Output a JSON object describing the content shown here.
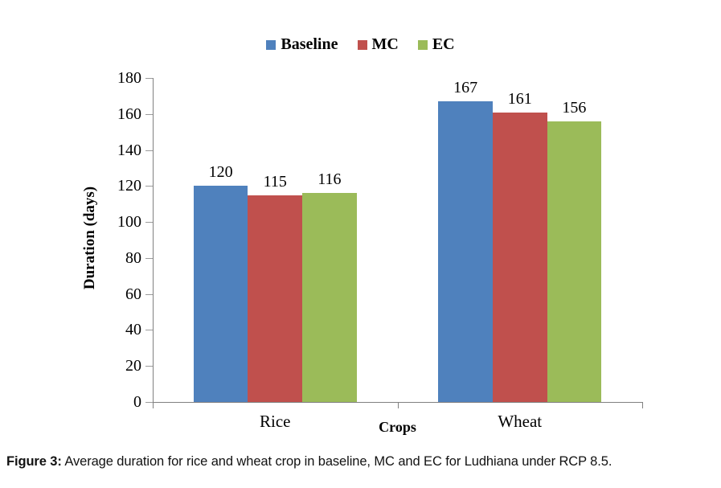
{
  "caption": {
    "label": "Figure 3:",
    "text": " Average duration for rice and wheat crop in baseline, MC and EC for Ludhiana under RCP 8.5."
  },
  "chart_data": {
    "type": "bar",
    "title": "",
    "categories": [
      "Rice",
      "Wheat"
    ],
    "series": [
      {
        "name": "Baseline",
        "color": "#4F81BD",
        "values": [
          120,
          167
        ]
      },
      {
        "name": "MC",
        "color": "#C0504D",
        "values": [
          115,
          161
        ]
      },
      {
        "name": "EC",
        "color": "#9BBB59",
        "values": [
          116,
          156
        ]
      }
    ],
    "xlabel": "Crops",
    "ylabel": "Duration (days)",
    "ylim": [
      0,
      180
    ],
    "ytick_step": 20,
    "grid": false,
    "legend_position": "top",
    "data_labels": true,
    "axis_color": "#808080"
  }
}
